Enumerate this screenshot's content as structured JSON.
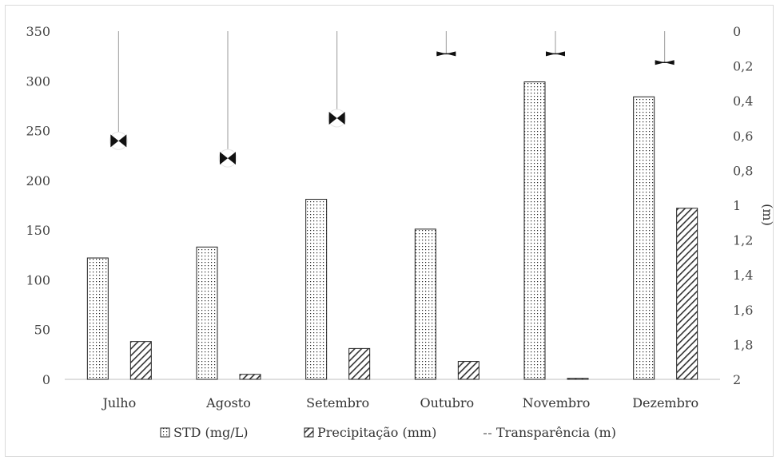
{
  "chart_data": {
    "type": "bar",
    "categories": [
      "Julho",
      "Agosto",
      "Setembro",
      "Outubro",
      "Novembro",
      "Dezembro"
    ],
    "series": [
      {
        "name": "STD (mg/L)",
        "values": [
          122,
          133,
          181,
          151,
          299,
          284
        ],
        "axis": "left",
        "pattern": "dots"
      },
      {
        "name": "Precipitação (mm)",
        "values": [
          38,
          5,
          31,
          18,
          1,
          172
        ],
        "axis": "left",
        "pattern": "hatch"
      }
    ],
    "line_series": {
      "name": "Transparência (m)",
      "values": [
        0.63,
        0.73,
        0.5,
        0.13,
        0.13,
        0.18
      ],
      "axis": "right",
      "style": "dropline with bowtie markers"
    },
    "y_left": {
      "ylim": [
        0,
        350
      ],
      "ticks": [
        "350",
        "300",
        "250",
        "200",
        "150",
        "100",
        "50",
        "0"
      ]
    },
    "y_right": {
      "ylim": [
        0,
        2
      ],
      "inverted": true,
      "ticks": [
        "0",
        "0,2",
        "0,4",
        "0,6",
        "0,8",
        "1",
        "1,2",
        "1,4",
        "1,6",
        "1,8",
        "2"
      ],
      "label": "(m)"
    },
    "legend": {
      "position": "bottom",
      "items": [
        "STD (mg/L)",
        "Precipitação (mm)",
        "Transparência (m)"
      ]
    },
    "grid": false
  }
}
